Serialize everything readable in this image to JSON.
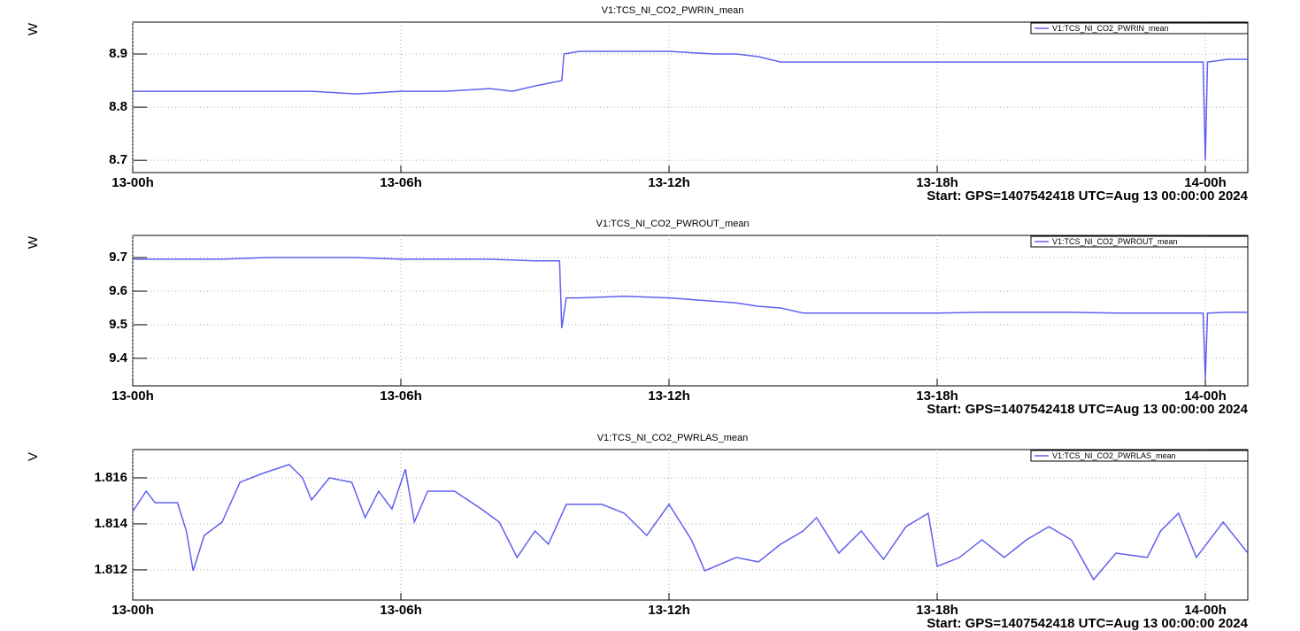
{
  "chart_data": [
    {
      "type": "line",
      "title": "V1:TCS_NI_CO2_PWRIN_mean",
      "y_label": "W",
      "note": "Start: GPS=1407542418 UTC=Aug 13 00:00:00 2024",
      "xlim": [
        0,
        24.95
      ],
      "xticks": [
        {
          "value": 0,
          "label": "13-00h"
        },
        {
          "value": 6,
          "label": "13-06h"
        },
        {
          "value": 12,
          "label": "13-12h"
        },
        {
          "value": 18,
          "label": "13-18h"
        },
        {
          "value": 24,
          "label": "14-00h"
        }
      ],
      "ylim": [
        8.677,
        8.96
      ],
      "yticks": [
        8.7,
        8.8,
        8.9
      ],
      "grid": true,
      "legend": "top-right",
      "series": [
        {
          "name": "V1:TCS_NI_CO2_PWRIN_mean",
          "color": "#6060f0",
          "x": [
            0,
            1,
            2,
            3,
            4,
            5,
            6,
            7,
            8,
            8.5,
            9,
            9.6,
            9.65,
            10,
            11,
            12,
            13,
            13.5,
            14,
            14.5,
            15,
            16,
            17,
            18,
            19,
            20,
            21,
            22,
            23,
            23.95,
            24.0,
            24.05,
            24.5,
            24.95
          ],
          "values": [
            8.83,
            8.83,
            8.83,
            8.83,
            8.83,
            8.825,
            8.83,
            8.83,
            8.835,
            8.83,
            8.84,
            8.85,
            8.9,
            8.905,
            8.905,
            8.905,
            8.9,
            8.9,
            8.895,
            8.885,
            8.885,
            8.885,
            8.885,
            8.885,
            8.885,
            8.885,
            8.885,
            8.885,
            8.885,
            8.885,
            8.7,
            8.885,
            8.89,
            8.89
          ]
        }
      ]
    },
    {
      "type": "line",
      "title": "V1:TCS_NI_CO2_PWROUT_mean",
      "y_label": "W",
      "note": "Start: GPS=1407542418 UTC=Aug 13 00:00:00 2024",
      "xlim": [
        0,
        24.95
      ],
      "xticks": [
        {
          "value": 0,
          "label": "13-00h"
        },
        {
          "value": 6,
          "label": "13-06h"
        },
        {
          "value": 12,
          "label": "13-12h"
        },
        {
          "value": 18,
          "label": "13-18h"
        },
        {
          "value": 24,
          "label": "14-00h"
        }
      ],
      "ylim": [
        9.318,
        9.766
      ],
      "yticks": [
        9.4,
        9.5,
        9.6,
        9.7
      ],
      "grid": true,
      "legend": "top-right",
      "series": [
        {
          "name": "V1:TCS_NI_CO2_PWROUT_mean",
          "color": "#6060f0",
          "x": [
            0,
            1,
            2,
            3,
            4,
            5,
            6,
            7,
            8,
            9,
            9.55,
            9.6,
            9.7,
            10,
            11,
            12,
            13,
            13.5,
            14,
            14.5,
            15,
            16,
            17,
            18,
            19,
            20,
            21,
            22,
            23,
            23.95,
            24.0,
            24.05,
            24.5,
            24.95
          ],
          "values": [
            9.695,
            9.695,
            9.695,
            9.7,
            9.7,
            9.7,
            9.695,
            9.695,
            9.695,
            9.69,
            9.69,
            9.49,
            9.58,
            9.58,
            9.585,
            9.58,
            9.57,
            9.565,
            9.555,
            9.55,
            9.535,
            9.535,
            9.535,
            9.535,
            9.537,
            9.537,
            9.537,
            9.535,
            9.535,
            9.535,
            9.34,
            9.535,
            9.537,
            9.537
          ]
        }
      ]
    },
    {
      "type": "line",
      "title": "V1:TCS_NI_CO2_PWRLAS_mean",
      "y_label": "V",
      "note": "Start: GPS=1407542418 UTC=Aug 13 00:00:00 2024",
      "xlim": [
        0,
        24.95
      ],
      "xticks": [
        {
          "value": 0,
          "label": "13-00h"
        },
        {
          "value": 6,
          "label": "13-06h"
        },
        {
          "value": 12,
          "label": "13-12h"
        },
        {
          "value": 18,
          "label": "13-18h"
        },
        {
          "value": 24,
          "label": "14-00h"
        }
      ],
      "ylim": [
        1.81069,
        1.81723
      ],
      "yticks": [
        1.812,
        1.814,
        1.816
      ],
      "grid": true,
      "legend": "top-right",
      "series": [
        {
          "name": "V1:TCS_NI_CO2_PWRLAS_mean",
          "color": "#6060f0",
          "x": [
            0,
            0.3,
            0.5,
            1.0,
            1.2,
            1.3,
            1.35,
            1.6,
            2.0,
            2.4,
            2.9,
            3.5,
            3.8,
            4.0,
            4.4,
            4.9,
            5.2,
            5.5,
            5.8,
            6.1,
            6.3,
            6.6,
            7.2,
            7.8,
            8.2,
            8.6,
            9.0,
            9.3,
            9.7,
            10.5,
            11.0,
            11.5,
            12.0,
            12.5,
            12.8,
            13.5,
            14.0,
            14.5,
            15.0,
            15.3,
            15.8,
            16.3,
            16.8,
            17.3,
            17.8,
            18.0,
            18.5,
            19.0,
            19.5,
            20.0,
            20.5,
            21.0,
            21.5,
            22.0,
            22.7,
            23.0,
            23.4,
            23.8,
            24.4,
            24.95
          ],
          "values": [
            1.81454,
            1.81542,
            1.81492,
            1.81492,
            1.81369,
            1.81254,
            1.81196,
            1.8135,
            1.81408,
            1.81581,
            1.81619,
            1.81658,
            1.816,
            1.81504,
            1.816,
            1.81581,
            1.81427,
            1.81542,
            1.81465,
            1.81638,
            1.81408,
            1.81542,
            1.81542,
            1.81465,
            1.81408,
            1.81254,
            1.81369,
            1.81312,
            1.81485,
            1.81485,
            1.81446,
            1.8135,
            1.81485,
            1.81331,
            1.81196,
            1.81254,
            1.81235,
            1.81312,
            1.81369,
            1.81427,
            1.81273,
            1.81369,
            1.81246,
            1.81388,
            1.81446,
            1.81215,
            1.81254,
            1.81331,
            1.81254,
            1.81331,
            1.81388,
            1.81331,
            1.81158,
            1.81273,
            1.81254,
            1.81369,
            1.81446,
            1.81254,
            1.81408,
            1.81273
          ]
        }
      ]
    }
  ]
}
